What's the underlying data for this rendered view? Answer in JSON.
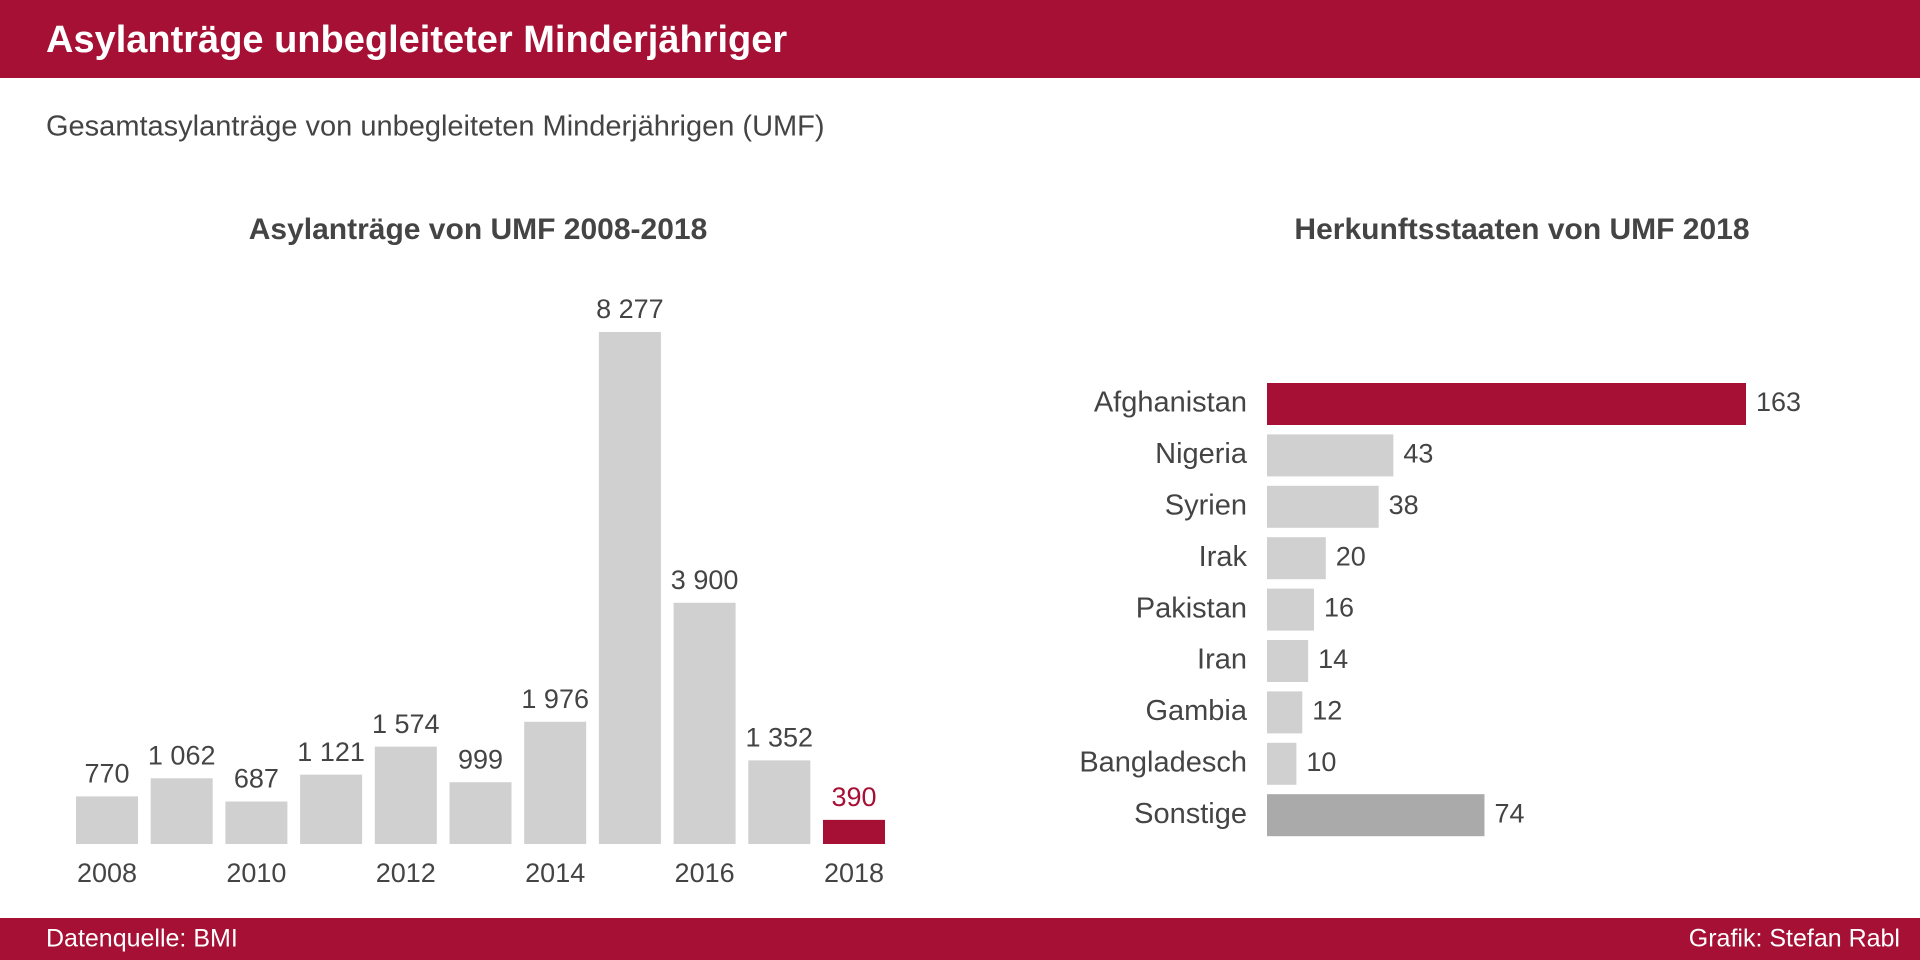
{
  "header": {
    "title": "Asylanträge unbegleiteter Minderjähriger",
    "subtitle": "Gesamtasylanträge von unbegleiteten Minderjährigen (UMF)"
  },
  "footer": {
    "source": "Datenquelle: BMI",
    "credit": "Grafik: Stefan Rabl"
  },
  "chart_data": [
    {
      "type": "bar",
      "title": "Asylanträge von UMF 2008-2018",
      "categories": [
        "2008",
        null,
        "2010",
        null,
        "2012",
        null,
        "2014",
        null,
        "2016",
        null,
        "2018"
      ],
      "values": [
        770,
        1062,
        687,
        1121,
        1574,
        999,
        1976,
        8277,
        3900,
        1352,
        390
      ],
      "value_labels": [
        "770",
        "1 062",
        "687",
        "1 121",
        "1 574",
        "999",
        "1 976",
        "8 277",
        "3 900",
        "1 352",
        "390"
      ],
      "color": "#d0d0d0",
      "colors": [
        "#d0d0d0",
        "#d0d0d0",
        "#d0d0d0",
        "#d0d0d0",
        "#d0d0d0",
        "#d0d0d0",
        "#d0d0d0",
        "#d0d0d0",
        "#d0d0d0",
        "#d0d0d0",
        "#a51034"
      ]
    },
    {
      "type": "hbar",
      "title": "Herkunftsstaaten von UMF 2018",
      "categories": [
        "Afghanistan",
        "Nigeria",
        "Syrien",
        "Irak",
        "Pakistan",
        "Iran",
        "Gambia",
        "Bangladesch",
        "Sonstige"
      ],
      "values": [
        163,
        43,
        38,
        20,
        16,
        14,
        12,
        10,
        74
      ],
      "color": "#d0d0d0",
      "colors": [
        "#a51034",
        "#d0d0d0",
        "#d0d0d0",
        "#d0d0d0",
        "#d0d0d0",
        "#d0d0d0",
        "#d0d0d0",
        "#d0d0d0",
        "#aaaaaa"
      ]
    }
  ]
}
